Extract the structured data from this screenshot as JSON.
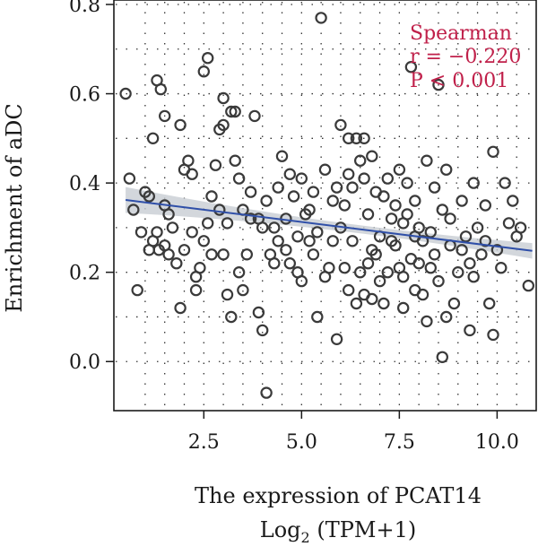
{
  "chart_data": {
    "type": "scatter",
    "title": "",
    "xlabel": "The expression of PCAT14",
    "xlabel_line2": "Log2 (TPM+1)",
    "xlabel_line2_parts": {
      "base": "Log",
      "sub": "2",
      "rest": " (TPM+1)"
    },
    "ylabel": "Enrichment of aDC",
    "xlim": [
      0.2,
      11.0
    ],
    "ylim": [
      -0.11,
      0.81
    ],
    "xticks": [
      2.5,
      5.0,
      7.5,
      10.0
    ],
    "xtick_labels": [
      "2.5",
      "5.0",
      "7.5",
      "10.0"
    ],
    "yticks": [
      0.0,
      0.2,
      0.4,
      0.6,
      0.8
    ],
    "ytick_labels": [
      "0.0",
      "0.2",
      "0.4",
      "0.6",
      "0.8"
    ],
    "grid": true,
    "annotation": {
      "lines": [
        "Spearman",
        "r = −0.220",
        "P < 0.001"
      ],
      "color": "#c0204a"
    },
    "regression": {
      "x": [
        0.5,
        10.9
      ],
      "y": [
        0.362,
        0.248
      ],
      "color": "#2f4fa8",
      "band_color": "#c8cdd3"
    },
    "point_color": "#3a3a3a",
    "points": [
      [
        0.5,
        0.6
      ],
      [
        0.6,
        0.41
      ],
      [
        0.7,
        0.34
      ],
      [
        0.8,
        0.16
      ],
      [
        1.0,
        0.38
      ],
      [
        1.1,
        0.37
      ],
      [
        1.2,
        0.5
      ],
      [
        1.3,
        0.63
      ],
      [
        1.4,
        0.61
      ],
      [
        1.5,
        0.55
      ],
      [
        1.2,
        0.27
      ],
      [
        1.3,
        0.29
      ],
      [
        1.35,
        0.25
      ],
      [
        1.5,
        0.26
      ],
      [
        1.6,
        0.24
      ],
      [
        1.8,
        0.22
      ],
      [
        1.9,
        0.12
      ],
      [
        1.7,
        0.3
      ],
      [
        1.5,
        0.35
      ],
      [
        1.9,
        0.53
      ],
      [
        2.0,
        0.43
      ],
      [
        2.1,
        0.45
      ],
      [
        2.2,
        0.42
      ],
      [
        2.3,
        0.19
      ],
      [
        2.3,
        0.16
      ],
      [
        2.4,
        0.21
      ],
      [
        2.5,
        0.27
      ],
      [
        2.5,
        0.65
      ],
      [
        2.6,
        0.68
      ],
      [
        2.7,
        0.37
      ],
      [
        2.8,
        0.44
      ],
      [
        2.9,
        0.52
      ],
      [
        3.0,
        0.59
      ],
      [
        3.0,
        0.53
      ],
      [
        3.1,
        0.31
      ],
      [
        3.2,
        0.56
      ],
      [
        3.3,
        0.56
      ],
      [
        3.3,
        0.45
      ],
      [
        3.4,
        0.41
      ],
      [
        3.5,
        0.34
      ],
      [
        2.9,
        0.34
      ],
      [
        3.0,
        0.24
      ],
      [
        3.2,
        0.1
      ],
      [
        3.4,
        0.2
      ],
      [
        3.6,
        0.24
      ],
      [
        3.7,
        0.38
      ],
      [
        3.8,
        0.55
      ],
      [
        3.9,
        0.32
      ],
      [
        3.9,
        0.11
      ],
      [
        4.0,
        0.07
      ],
      [
        4.1,
        -0.07
      ],
      [
        4.2,
        0.24
      ],
      [
        4.3,
        0.3
      ],
      [
        4.4,
        0.39
      ],
      [
        4.5,
        0.46
      ],
      [
        4.6,
        0.25
      ],
      [
        4.7,
        0.42
      ],
      [
        4.8,
        0.37
      ],
      [
        4.9,
        0.2
      ],
      [
        5.0,
        0.18
      ],
      [
        5.1,
        0.33
      ],
      [
        5.2,
        0.34
      ],
      [
        5.3,
        0.24
      ],
      [
        5.4,
        0.1
      ],
      [
        5.5,
        0.77
      ],
      [
        5.6,
        0.43
      ],
      [
        5.7,
        0.21
      ],
      [
        5.8,
        0.36
      ],
      [
        5.9,
        0.05
      ],
      [
        6.0,
        0.3
      ],
      [
        6.1,
        0.21
      ],
      [
        6.2,
        0.42
      ],
      [
        6.3,
        0.27
      ],
      [
        6.4,
        0.13
      ],
      [
        6.5,
        0.45
      ],
      [
        6.6,
        0.15
      ],
      [
        6.7,
        0.33
      ],
      [
        6.8,
        0.25
      ],
      [
        6.9,
        0.38
      ],
      [
        7.0,
        0.18
      ],
      [
        6.0,
        0.53
      ],
      [
        6.2,
        0.5
      ],
      [
        6.4,
        0.5
      ],
      [
        6.6,
        0.5
      ],
      [
        6.8,
        0.46
      ],
      [
        7.1,
        0.13
      ],
      [
        7.2,
        0.41
      ],
      [
        7.3,
        0.27
      ],
      [
        7.4,
        0.35
      ],
      [
        7.5,
        0.21
      ],
      [
        7.6,
        0.31
      ],
      [
        7.7,
        0.4
      ],
      [
        7.8,
        0.66
      ],
      [
        7.9,
        0.16
      ],
      [
        8.0,
        0.3
      ],
      [
        8.1,
        0.27
      ],
      [
        8.2,
        0.45
      ],
      [
        8.3,
        0.21
      ],
      [
        8.4,
        0.24
      ],
      [
        8.5,
        0.62
      ],
      [
        8.6,
        0.34
      ],
      [
        8.7,
        0.43
      ],
      [
        8.8,
        0.26
      ],
      [
        8.9,
        0.13
      ],
      [
        9.0,
        0.2
      ],
      [
        9.1,
        0.36
      ],
      [
        9.2,
        0.28
      ],
      [
        9.3,
        0.22
      ],
      [
        9.4,
        0.4
      ],
      [
        9.5,
        0.3
      ],
      [
        9.6,
        0.24
      ],
      [
        9.7,
        0.35
      ],
      [
        9.8,
        0.13
      ],
      [
        9.9,
        0.47
      ],
      [
        10.0,
        0.25
      ],
      [
        10.2,
        0.4
      ],
      [
        10.4,
        0.36
      ],
      [
        10.5,
        0.28
      ],
      [
        10.6,
        0.3
      ],
      [
        10.8,
        0.17
      ],
      [
        8.6,
        0.01
      ],
      [
        9.9,
        0.06
      ],
      [
        7.8,
        0.23
      ],
      [
        7.6,
        0.19
      ],
      [
        7.9,
        0.28
      ],
      [
        8.1,
        0.15
      ],
      [
        7.3,
        0.32
      ],
      [
        7.0,
        0.28
      ],
      [
        6.7,
        0.22
      ],
      [
        6.5,
        0.2
      ],
      [
        5.8,
        0.27
      ],
      [
        5.6,
        0.19
      ],
      [
        5.2,
        0.27
      ],
      [
        4.9,
        0.28
      ],
      [
        4.6,
        0.32
      ],
      [
        4.3,
        0.22
      ],
      [
        3.7,
        0.32
      ],
      [
        3.5,
        0.16
      ],
      [
        2.7,
        0.24
      ],
      [
        2.2,
        0.29
      ],
      [
        1.1,
        0.25
      ],
      [
        1.6,
        0.33
      ],
      [
        0.9,
        0.29
      ],
      [
        2.0,
        0.25
      ],
      [
        2.6,
        0.31
      ],
      [
        3.1,
        0.15
      ],
      [
        4.0,
        0.3
      ],
      [
        4.4,
        0.27
      ],
      [
        5.4,
        0.29
      ],
      [
        6.1,
        0.35
      ],
      [
        6.3,
        0.39
      ],
      [
        6.9,
        0.24
      ],
      [
        7.2,
        0.2
      ],
      [
        7.4,
        0.26
      ],
      [
        7.7,
        0.33
      ],
      [
        8.0,
        0.22
      ],
      [
        8.3,
        0.29
      ],
      [
        8.5,
        0.18
      ],
      [
        8.8,
        0.32
      ],
      [
        9.1,
        0.25
      ],
      [
        9.4,
        0.19
      ],
      [
        9.7,
        0.27
      ],
      [
        10.1,
        0.21
      ],
      [
        10.3,
        0.31
      ],
      [
        5.9,
        0.39
      ],
      [
        6.6,
        0.41
      ],
      [
        7.1,
        0.37
      ],
      [
        7.5,
        0.43
      ],
      [
        7.9,
        0.36
      ],
      [
        8.4,
        0.39
      ],
      [
        6.2,
        0.16
      ],
      [
        6.8,
        0.14
      ],
      [
        7.6,
        0.12
      ],
      [
        8.2,
        0.09
      ],
      [
        8.7,
        0.1
      ],
      [
        9.3,
        0.07
      ],
      [
        5.0,
        0.41
      ],
      [
        5.3,
        0.38
      ],
      [
        4.7,
        0.22
      ],
      [
        4.1,
        0.36
      ]
    ]
  }
}
